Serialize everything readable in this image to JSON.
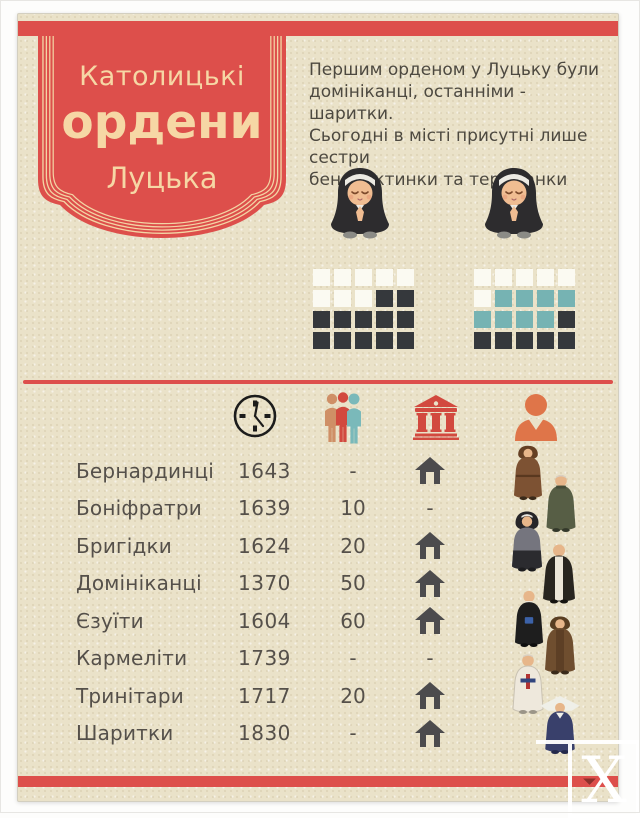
{
  "colors": {
    "accent_red": "#dd4f4b",
    "background_beige": "#eae2c9",
    "banner_text_cream": "#f6d7a5",
    "body_text": "#4d4940",
    "square_white": "#fbfaf2",
    "square_dark": "#35383c",
    "square_teal": "#76b3b3",
    "house_icon_gray": "#4c4b4d",
    "people_icon_tan": "#cf8f66",
    "people_icon_red": "#d2493f",
    "people_icon_teal": "#7ab9ba",
    "person_icon_orange": "#df7549"
  },
  "banner": {
    "line1": "Католицькі",
    "line2": "ордени",
    "line3": "Луцька"
  },
  "intro": {
    "lines": [
      "Першим орденом у Луцьку були",
      "домініканці, останніми - шаритки.",
      "Сьогодні в місті присутні лише сестри",
      "бенедиктинки та терезіанки"
    ]
  },
  "waffle_charts": [
    {
      "name": "left-waffle",
      "icon": "praying-nun-icon",
      "columns": 5,
      "rows": 4,
      "cells": [
        "w",
        "w",
        "w",
        "w",
        "w",
        "w",
        "w",
        "w",
        "d",
        "d",
        "d",
        "d",
        "d",
        "d",
        "d",
        "d",
        "d",
        "d",
        "d",
        "d"
      ]
    },
    {
      "name": "right-waffle",
      "icon": "praying-nun-icon",
      "columns": 5,
      "rows": 4,
      "cells": [
        "w",
        "w",
        "w",
        "w",
        "w",
        "w",
        "t",
        "t",
        "t",
        "t",
        "t",
        "t",
        "t",
        "t",
        "d",
        "d",
        "d",
        "d",
        "d",
        "d"
      ]
    }
  ],
  "table": {
    "header_icons": [
      "clock-icon",
      "people-icon",
      "monastery-building-icon",
      "monk-person-icon"
    ],
    "rows": [
      {
        "name": "Бернардинці",
        "year": "1643",
        "members": "-",
        "monastery": "house",
        "figure": "bernardine-monk"
      },
      {
        "name": "Боніфратри",
        "year": "1639",
        "members": "10",
        "monastery": "-",
        "figure": "bonifrater-monk"
      },
      {
        "name": "Бригідки",
        "year": "1624",
        "members": "20",
        "monastery": "house",
        "figure": "brigidine-nun"
      },
      {
        "name": "Домініканці",
        "year": "1370",
        "members": "50",
        "monastery": "house",
        "figure": "dominican-monk"
      },
      {
        "name": "Єзуїти",
        "year": "1604",
        "members": "60",
        "monastery": "house",
        "figure": "jesuit-priest"
      },
      {
        "name": "Кармеліти",
        "year": "1739",
        "members": "-",
        "monastery": "-",
        "figure": "carmelite-monk"
      },
      {
        "name": "Тринітари",
        "year": "1717",
        "members": "20",
        "monastery": "house",
        "figure": "trinitarian-monk"
      },
      {
        "name": "Шаритки",
        "year": "1830",
        "members": "-",
        "monastery": "house",
        "figure": "sharytky-nun"
      }
    ]
  },
  "chart_data": [
    {
      "type": "table",
      "title": "Католицькі ордени Луцька",
      "columns": [
        "order_name",
        "founding_year",
        "members_count",
        "has_monastery"
      ],
      "rows": [
        [
          "Бернардинці",
          1643,
          "-",
          true
        ],
        [
          "Боніфратри",
          1639,
          10,
          false
        ],
        [
          "Бригідки",
          1624,
          20,
          true
        ],
        [
          "Домініканці",
          1370,
          50,
          true
        ],
        [
          "Єзуїти",
          1604,
          60,
          true
        ],
        [
          "Кармеліти",
          1739,
          "-",
          false
        ],
        [
          "Тринітари",
          1717,
          20,
          true
        ],
        [
          "Шаритки",
          1830,
          "-",
          true
        ]
      ]
    },
    {
      "type": "heatmap",
      "subtype": "waffle-units",
      "grids": [
        {
          "position": "left",
          "counts": {
            "white": 8,
            "dark": 12,
            "teal": 0
          }
        },
        {
          "position": "right",
          "counts": {
            "white": 6,
            "teal": 8,
            "dark": 6
          }
        }
      ],
      "cell_colors": {
        "w": "#fbfaf2",
        "d": "#35383c",
        "t": "#76b3b3"
      }
    }
  ],
  "watermark": {
    "letter": "X"
  }
}
